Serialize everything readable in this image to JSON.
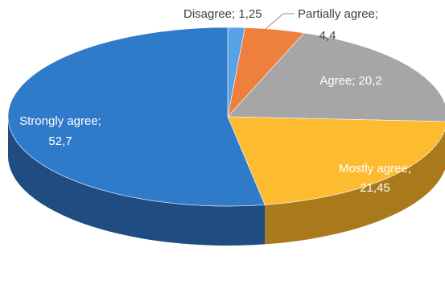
{
  "chart_data": {
    "type": "pie",
    "style": "3d",
    "title": "",
    "series": [
      {
        "values": [
          1.25,
          4.4,
          20.2,
          21.45,
          52.7
        ]
      }
    ],
    "categories": [
      "Disagree",
      "Partially agree",
      "Agree",
      "Mostly agree",
      "Strongly agree"
    ],
    "slices": [
      {
        "label": "Disagree",
        "value": 1.25,
        "value_text": "1,25",
        "color": "#5aa2e6",
        "side_color": "#3d7bb8"
      },
      {
        "label": "Partially agree",
        "value": 4.4,
        "value_text": "4,4",
        "color": "#ef7f3d",
        "side_color": "#b85d2b"
      },
      {
        "label": "Agree",
        "value": 20.2,
        "value_text": "20,2",
        "color": "#a6a6a6",
        "side_color": "#7b7b7b"
      },
      {
        "label": "Mostly agree",
        "value": 21.45,
        "value_text": "21,45",
        "color": "#fdbb2f",
        "side_color": "#a97a1c"
      },
      {
        "label": "Strongly agree",
        "value": 52.7,
        "value_text": "52,7",
        "color": "#2f7bc9",
        "side_color": "#1f4d82"
      }
    ],
    "labels": [
      {
        "text": "Disagree; 1,25"
      },
      {
        "text": "Partially agree;"
      },
      {
        "text": "4,4"
      },
      {
        "text": "Agree; 20,2"
      },
      {
        "text": "Mostly agree;"
      },
      {
        "text": "21,45"
      },
      {
        "text": "Strongly agree;"
      },
      {
        "text": "52,7"
      }
    ],
    "legend": "none"
  }
}
